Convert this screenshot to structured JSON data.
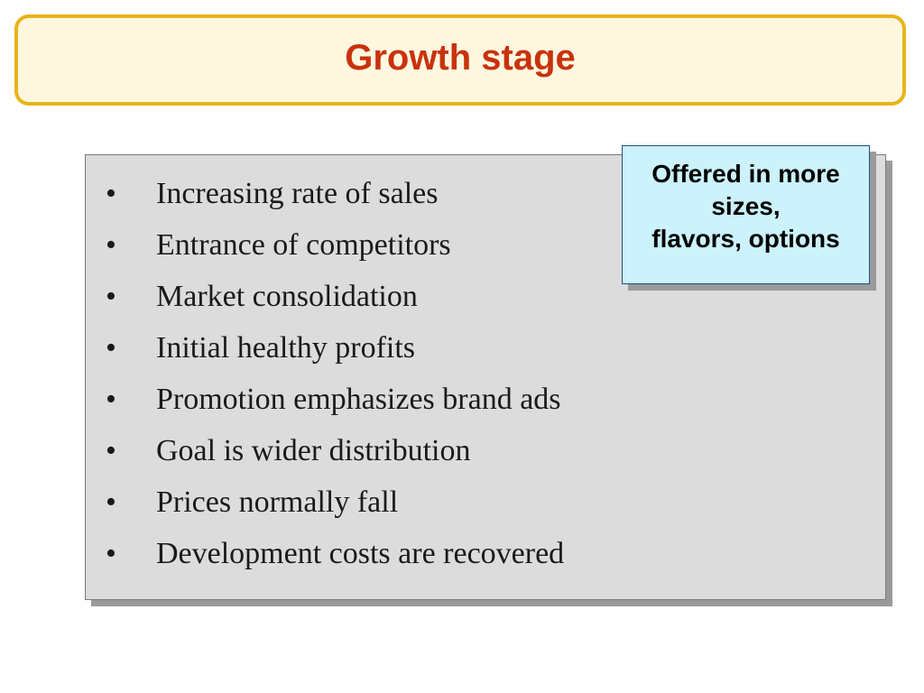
{
  "slide": {
    "title": "Growth stage",
    "bullets": [
      "Increasing rate of sales",
      "Entrance of competitors",
      "Market consolidation",
      "Initial healthy profits",
      "Promotion emphasizes brand ads",
      "Goal is wider distribution",
      "Prices normally fall",
      "Development costs are recovered"
    ],
    "bullet_symbol": "•",
    "callout": {
      "lines": [
        "Offered in more",
        "sizes,",
        "flavors, options"
      ]
    }
  },
  "colors": {
    "title_text": "#c8320c",
    "title_border": "#e8b41a",
    "title_fill": "#fff7e0",
    "content_fill": "#dcdcdc",
    "callout_fill": "#ccf2fb",
    "callout_border": "#1a4f8a"
  }
}
